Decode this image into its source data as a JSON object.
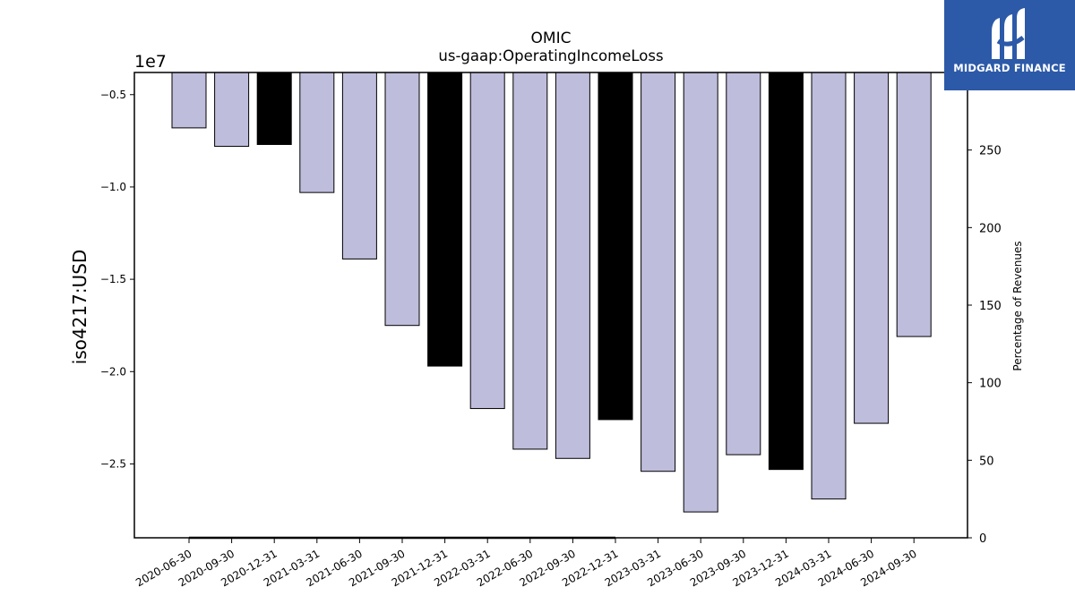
{
  "brand": {
    "name": "MIDGARD FINANCE",
    "background": "#2c5aa8"
  },
  "chart_data": {
    "type": "bar",
    "title": "OMIC",
    "subtitle": "us-gaap:OperatingIncomeLoss",
    "ylabel": "iso4217:USD",
    "y2label": "Percentage of Revenues",
    "offset_text": "1e7",
    "categories": [
      "2020-06-30",
      "2020-09-30",
      "2020-12-31",
      "2021-03-31",
      "2021-06-30",
      "2021-09-30",
      "2021-12-31",
      "2022-03-31",
      "2022-06-30",
      "2022-09-30",
      "2022-12-31",
      "2023-03-31",
      "2023-06-30",
      "2023-09-30",
      "2023-12-31",
      "2024-03-31",
      "2024-06-30",
      "2024-09-30"
    ],
    "values": [
      -6800000,
      -7800000,
      -7700000,
      -10300000,
      -13900000,
      -17500000,
      -19700000,
      -22000000,
      -24200000,
      -24700000,
      -22600000,
      -25400000,
      -27600000,
      -24500000,
      -25300000,
      -26900000,
      -22800000,
      -18100000
    ],
    "annual": [
      false,
      false,
      true,
      false,
      false,
      false,
      true,
      false,
      false,
      false,
      true,
      false,
      false,
      false,
      true,
      false,
      false,
      false
    ],
    "bar_color": "#bfbddc",
    "annual_color": "#000000",
    "ylim": [
      -29000000,
      -3800000
    ],
    "yticks": [
      -5000000,
      -10000000,
      -15000000,
      -20000000,
      -25000000
    ],
    "ytick_labels": [
      "−0.5",
      "−1.0",
      "−1.5",
      "−2.0",
      "−2.5"
    ],
    "y2lim": [
      0,
      300
    ],
    "y2ticks": [
      0,
      50,
      100,
      150,
      200,
      250
    ],
    "y2tick_labels": [
      "0",
      "50",
      "100",
      "150",
      "200",
      "250"
    ],
    "percent_series": {
      "values": [
        0,
        0,
        0,
        0,
        0,
        0,
        0,
        0,
        0,
        0,
        0
      ],
      "color": "#000000"
    }
  }
}
